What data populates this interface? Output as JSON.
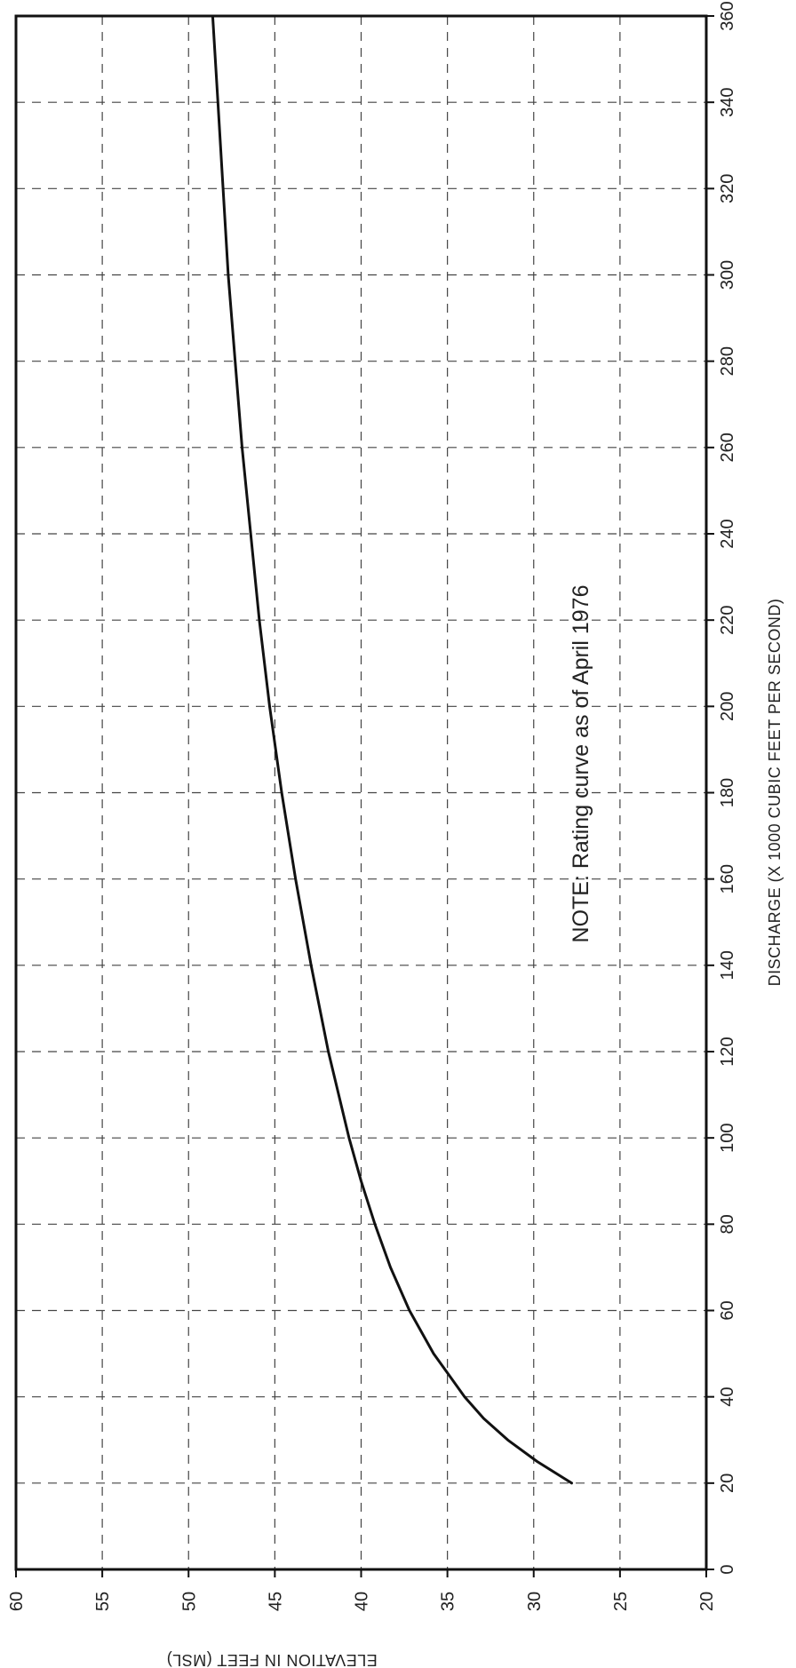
{
  "chart_data": {
    "type": "line",
    "orientation": "rotated 90 degrees clockwise",
    "xlabel": "DISCHARGE (X 1000 CUBIC FEET PER SECOND)",
    "ylabel": "ELEVATION IN FEET (MSL)",
    "xlim": [
      0,
      360
    ],
    "ylim": [
      20,
      60
    ],
    "x_ticks": [
      "0",
      "20",
      "40",
      "60",
      "80",
      "100",
      "120",
      "140",
      "160",
      "180",
      "200",
      "220",
      "240",
      "260",
      "280",
      "300",
      "320",
      "340",
      "360"
    ],
    "y_ticks": [
      "60",
      "55",
      "50",
      "45",
      "40",
      "35",
      "30",
      "25",
      "20"
    ],
    "grid": true,
    "annotation": "NOTE: Rating curve as of April 1976",
    "series": [
      {
        "x": [
          20,
          25,
          30,
          35,
          40,
          50,
          60,
          70,
          80,
          90,
          100,
          120,
          140,
          160,
          180,
          200,
          220,
          240,
          260,
          280,
          300,
          320,
          340,
          360
        ],
        "y": [
          27.8,
          29.8,
          31.5,
          32.9,
          34.0,
          35.8,
          37.2,
          38.3,
          39.2,
          40.0,
          40.7,
          41.9,
          42.9,
          43.8,
          44.6,
          45.3,
          45.9,
          46.4,
          46.9,
          47.3,
          47.7,
          48.0,
          48.3,
          48.6
        ]
      }
    ]
  }
}
